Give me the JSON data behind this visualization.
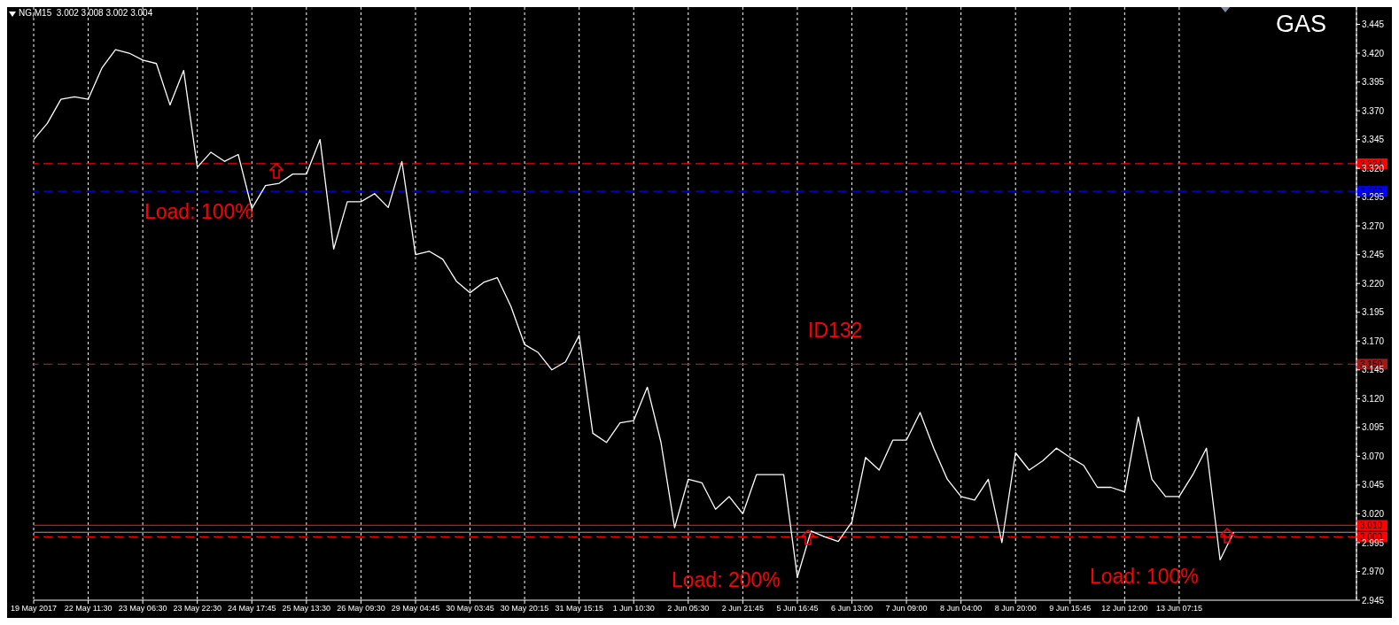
{
  "chart_data": {
    "type": "line",
    "title": "GAS",
    "subtitle": "NG,M15  3.002 3.008 3.002 3.004",
    "annotations": [
      "Load: 100%",
      "ID132",
      "Load: 200%",
      "Load: 100%"
    ],
    "categories": [
      "19 May 2017",
      null,
      null,
      null,
      "22 May 11:30",
      null,
      null,
      null,
      "23 May 06:30",
      null,
      null,
      null,
      "23 May 22:30",
      null,
      null,
      null,
      "24 May 17:45",
      null,
      null,
      null,
      "25 May 13:30",
      null,
      null,
      null,
      "26 May 09:30",
      null,
      null,
      null,
      "29 May 04:45",
      null,
      null,
      null,
      "30 May 03:45",
      null,
      null,
      null,
      "30 May 20:15",
      null,
      null,
      null,
      "31 May 15:15",
      null,
      null,
      null,
      "1 Jun 10:30",
      null,
      null,
      null,
      "2 Jun 05:30",
      null,
      null,
      null,
      "2 Jun 21:45",
      null,
      null,
      null,
      "5 Jun 16:45",
      null,
      null,
      null,
      "6 Jun 13:00",
      null,
      null,
      null,
      "7 Jun 09:00",
      null,
      null,
      null,
      "8 Jun 04:00",
      null,
      null,
      null,
      "8 Jun 20:00",
      null,
      null,
      null,
      "9 Jun 15:45",
      null,
      null,
      null,
      "12 Jun 12:00",
      null,
      null,
      null,
      "13 Jun 07:15",
      null,
      null,
      null,
      null,
      null,
      null,
      null,
      null,
      null,
      null,
      null,
      null,
      null
    ],
    "series": [
      {
        "color": "#ffffff",
        "values": [
          3.345,
          3.359,
          3.38,
          3.382,
          3.38,
          3.407,
          3.423,
          3.42,
          3.414,
          3.411,
          3.375,
          3.405,
          3.321,
          3.334,
          3.326,
          3.332,
          3.285,
          3.305,
          3.307,
          3.315,
          3.315,
          3.345,
          3.25,
          3.291,
          3.291,
          3.298,
          3.286,
          3.326,
          3.245,
          3.248,
          3.241,
          3.222,
          3.212,
          3.221,
          3.225,
          3.2,
          3.167,
          3.16,
          3.145,
          3.152,
          3.175,
          3.09,
          3.082,
          3.099,
          3.101,
          3.13,
          3.082,
          3.008,
          3.05,
          3.047,
          3.024,
          3.035,
          3.02,
          3.054,
          3.054,
          3.054,
          2.965,
          3.005,
          3.0,
          2.996,
          3.013,
          3.069,
          3.058,
          3.084,
          3.084,
          3.108,
          3.077,
          3.05,
          3.035,
          3.032,
          3.05,
          2.995,
          3.073,
          3.058,
          3.066,
          3.077,
          3.069,
          3.062,
          3.043,
          3.043,
          3.039,
          3.104,
          3.05,
          3.035,
          3.035,
          3.054,
          3.077,
          2.98,
          3.004,
          null,
          null,
          null,
          null,
          null,
          null,
          null,
          null,
          null
        ]
      }
    ],
    "ylim": [
      2.945,
      3.46
    ],
    "yticks": [
      2.945,
      {
        "value": 2.97,
        "label": "2.970"
      },
      2.995,
      {
        "value": 3.02,
        "label": "3.020"
      },
      3.045,
      {
        "value": 3.07,
        "label": "3.070"
      },
      3.095,
      {
        "value": 3.12,
        "label": "3.120"
      },
      3.145,
      {
        "value": 3.17,
        "label": "3.170"
      },
      3.195,
      {
        "value": 3.22,
        "label": "3.220"
      },
      3.245,
      {
        "value": 3.27,
        "label": "3.270"
      },
      3.295,
      {
        "value": 3.32,
        "label": "3.320"
      },
      3.345,
      {
        "value": 3.37,
        "label": "3.370"
      },
      3.395,
      {
        "value": 3.42,
        "label": "3.420"
      },
      3.445
    ],
    "ref_lines": [
      {
        "axis": "y",
        "value": 3.324,
        "label": "3.324",
        "color": "#ff0000",
        "line_style": "dashed"
      },
      {
        "axis": "y",
        "value": 3.3,
        "label": "3.300",
        "color": "#0000ff",
        "line_style": "dashed"
      },
      {
        "axis": "y",
        "value": 3.15,
        "label": "3.150",
        "color": "#a01818",
        "line_style": "dashed"
      },
      {
        "axis": "y",
        "value": 3.01,
        "label": "3.010",
        "color": "#ff0000",
        "line_style": "solid"
      },
      {
        "axis": "y",
        "value": 3.004,
        "color": "#a0a0a0",
        "line_style": "solid"
      },
      {
        "axis": "y",
        "value": 3.0,
        "label": "3.000",
        "color": "#ff0000",
        "line_style": "dashed"
      }
    ],
    "grid": "x",
    "marker": "none",
    "line_style": "solid"
  }
}
